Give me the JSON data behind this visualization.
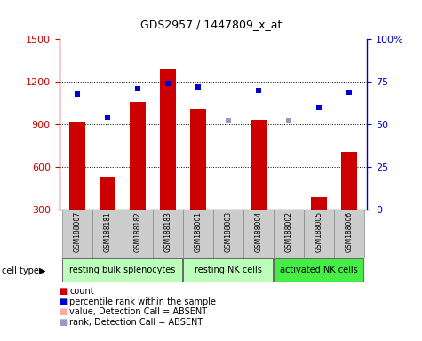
{
  "title": "GDS2957 / 1447809_x_at",
  "samples": [
    "GSM188007",
    "GSM188181",
    "GSM188182",
    "GSM188183",
    "GSM188001",
    "GSM188003",
    "GSM188004",
    "GSM188002",
    "GSM188005",
    "GSM188006"
  ],
  "bar_values": [
    920,
    535,
    1060,
    1290,
    1010,
    260,
    930,
    270,
    390,
    710
  ],
  "bar_absent": [
    false,
    false,
    false,
    false,
    false,
    false,
    false,
    true,
    false,
    false
  ],
  "rank_values": [
    68,
    54,
    71,
    74,
    72,
    52,
    70,
    52,
    60,
    69
  ],
  "rank_absent": [
    false,
    false,
    false,
    false,
    false,
    true,
    false,
    true,
    false,
    false
  ],
  "ylim_left": [
    300,
    1500
  ],
  "ylim_right": [
    0,
    100
  ],
  "yticks_left": [
    300,
    600,
    900,
    1200,
    1500
  ],
  "yticks_right": [
    0,
    25,
    50,
    75,
    100
  ],
  "group_configs": [
    {
      "start": 0,
      "end": 3,
      "label": "resting bulk splenocytes",
      "color": "#bbffbb"
    },
    {
      "start": 4,
      "end": 6,
      "label": "resting NK cells",
      "color": "#bbffbb"
    },
    {
      "start": 7,
      "end": 9,
      "label": "activated NK cells",
      "color": "#44ee44"
    }
  ],
  "bar_color_present": "#cc0000",
  "bar_color_absent": "#ffaaaa",
  "rank_color_present": "#0000cc",
  "rank_color_absent": "#9999bb",
  "bar_width": 0.55,
  "plot_bg": "#ffffff",
  "sample_box_color": "#cccccc",
  "legend_items": [
    {
      "color": "#cc0000",
      "label": "count"
    },
    {
      "color": "#0000cc",
      "label": "percentile rank within the sample"
    },
    {
      "color": "#ffaaaa",
      "label": "value, Detection Call = ABSENT"
    },
    {
      "color": "#9999bb",
      "label": "rank, Detection Call = ABSENT"
    }
  ]
}
